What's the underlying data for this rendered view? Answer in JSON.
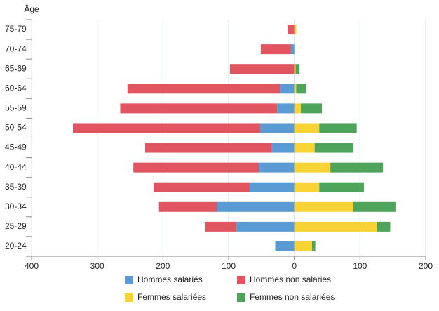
{
  "chart_data": {
    "type": "bar",
    "orientation": "horizontal",
    "stacked": true,
    "y_label": "Âge",
    "categories": [
      "75-79",
      "70-74",
      "65-69",
      "60-64",
      "55-59",
      "50-54",
      "45-49",
      "40-44",
      "35-39",
      "30-34",
      "25-29",
      "20-24"
    ],
    "series": [
      {
        "name": "Hommes salariés",
        "color": "#5b9bd5",
        "values": [
          0,
          -5,
          0,
          -22,
          -26,
          -52,
          -34,
          -54,
          -68,
          -118,
          -88,
          -29
        ]
      },
      {
        "name": "Hommes non salariés",
        "color": "#e05560",
        "values": [
          -10,
          -46,
          -98,
          -232,
          -239,
          -285,
          -193,
          -191,
          -146,
          -88,
          -48,
          0
        ]
      },
      {
        "name": "Femmes salariées",
        "color": "#f9d235",
        "values": [
          3,
          0,
          2,
          3,
          10,
          38,
          31,
          55,
          38,
          90,
          126,
          27
        ]
      },
      {
        "name": "Femmes non salariées",
        "color": "#4ea45a",
        "values": [
          0,
          0,
          6,
          15,
          32,
          57,
          59,
          80,
          68,
          64,
          20,
          5
        ]
      }
    ],
    "xlim": [
      -400,
      200
    ],
    "xticks": [
      {
        "value": -400,
        "label": "400"
      },
      {
        "value": -300,
        "label": "300"
      },
      {
        "value": -200,
        "label": "200"
      },
      {
        "value": -100,
        "label": "100"
      },
      0,
      100,
      200
    ],
    "grid": true,
    "legend": "bottom"
  }
}
